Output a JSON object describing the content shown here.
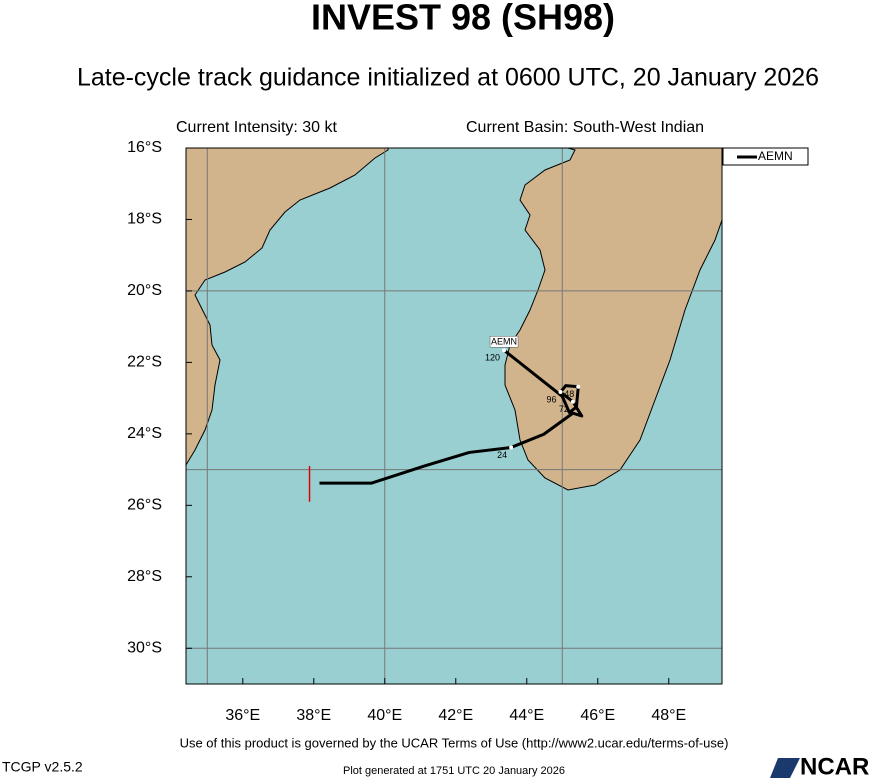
{
  "chart_data": {
    "type": "map",
    "title": "INVEST 98 (SH98)",
    "subtitle": "Late-cycle track guidance initialized at 0600 UTC, 20 January 2026",
    "intensity": "Current Intensity: 30 kt",
    "basin": "Current Basin: South-West Indian",
    "xlim": [
      34.4,
      49.5
    ],
    "ylim": [
      -31.0,
      -16.0
    ],
    "xticks": [
      {
        "value": 36,
        "label": "36°E"
      },
      {
        "value": 38,
        "label": "38°E"
      },
      {
        "value": 40,
        "label": "40°E"
      },
      {
        "value": 42,
        "label": "42°E"
      },
      {
        "value": 44,
        "label": "44°E"
      },
      {
        "value": 46,
        "label": "46°E"
      },
      {
        "value": 48,
        "label": "48°E"
      }
    ],
    "yticks": [
      {
        "value": -16,
        "label": "16°S"
      },
      {
        "value": -18,
        "label": "18°S"
      },
      {
        "value": -20,
        "label": "20°S"
      },
      {
        "value": -22,
        "label": "22°S"
      },
      {
        "value": -24,
        "label": "24°S"
      },
      {
        "value": -26,
        "label": "26°S"
      },
      {
        "value": -28,
        "label": "28°S"
      },
      {
        "value": -30,
        "label": "30°S"
      }
    ],
    "grid_lon": [
      35,
      40,
      45
    ],
    "grid_lat": [
      -20,
      -25,
      -30
    ],
    "series": [
      {
        "name": "AEMN",
        "color": "#000000",
        "x": [
          38.16,
          39.62,
          41.11,
          42.38,
          43.56,
          44.48,
          45.3,
          45.55,
          45.3,
          44.95,
          45.1,
          45.45,
          45.4,
          45.2,
          45.0,
          43.36
        ],
        "values": [
          -25.38,
          -25.38,
          -24.9,
          -24.52,
          -24.38,
          -24.01,
          -23.42,
          -23.5,
          -23.1,
          -22.83,
          -22.65,
          -22.68,
          -23.25,
          -23.4,
          -22.95,
          -21.66
        ],
        "hours": [
          null,
          null,
          null,
          null,
          "24",
          null,
          null,
          null,
          "72",
          "96",
          null,
          "48",
          null,
          null,
          null,
          "120"
        ]
      }
    ],
    "red_marker": {
      "color": "#e00000",
      "x": 37.88,
      "values": [
        -24.9,
        -25.9
      ]
    },
    "footer": "Use of this product is governed by the UCAR Terms of Use (http://www2.ucar.edu/terms-of-use)",
    "version": "TCGP v2.5.2",
    "generated": "Plot generated at 1751 UTC   20 January 2026",
    "logo": "NCAR"
  }
}
